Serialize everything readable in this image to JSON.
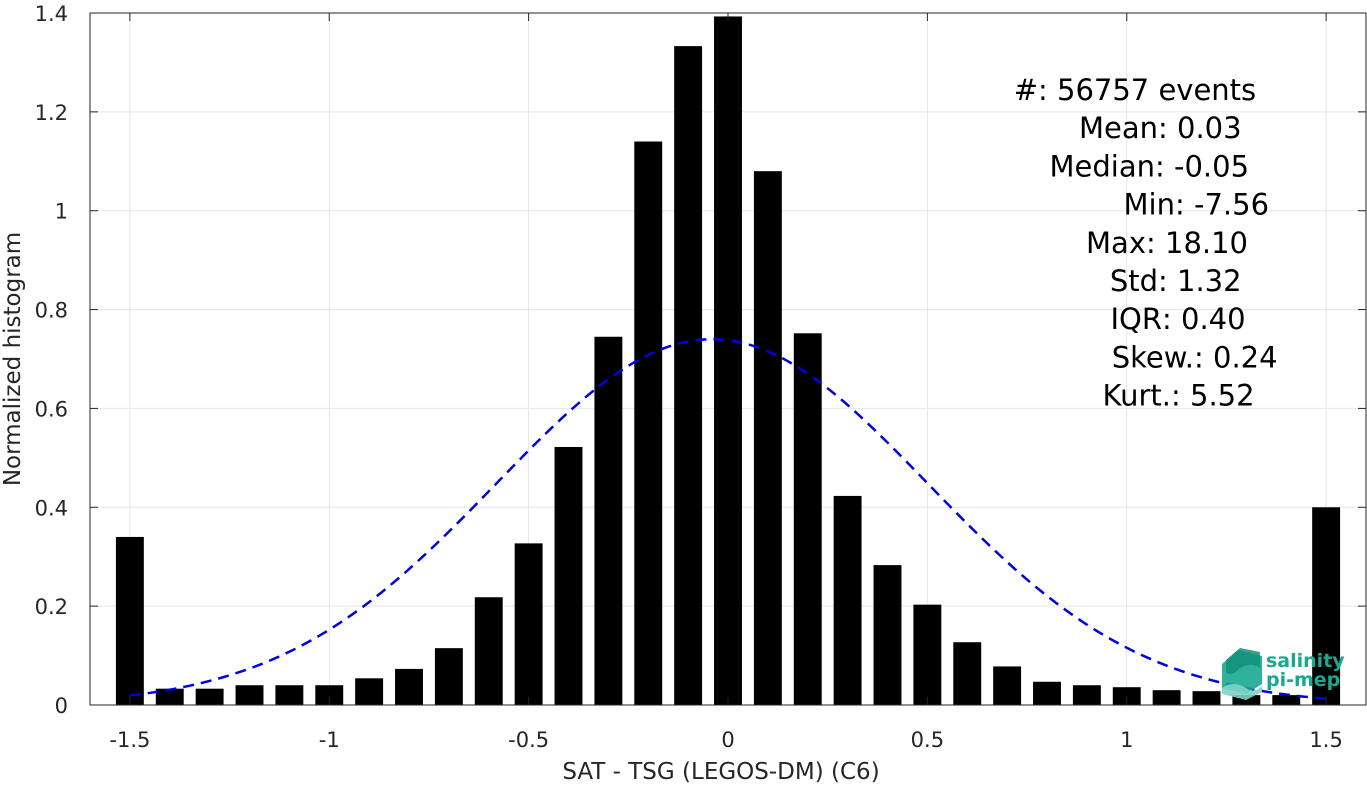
{
  "chart_data": {
    "type": "bar",
    "xlabel": "SAT - TSG (LEGOS-DM) (C6)",
    "ylabel": "Normalized histogram",
    "xlim": [
      -1.6,
      1.6
    ],
    "ylim": [
      0,
      1.4
    ],
    "grid": true,
    "x_ticks": [
      -1.5,
      -1,
      -0.5,
      0,
      0.5,
      1,
      1.5
    ],
    "x_tick_labels": [
      "-1.5",
      "-1",
      "-0.5",
      "0",
      "0.5",
      "1",
      "1.5"
    ],
    "y_ticks": [
      0,
      0.2,
      0.4,
      0.6,
      0.8,
      1,
      1.2,
      1.4
    ],
    "y_tick_labels": [
      "0",
      "0.2",
      "0.4",
      "0.6",
      "0.8",
      "1",
      "1.2",
      "1.4"
    ],
    "bin_width": 0.1,
    "bar_color": "#000000",
    "x": [
      -1.5,
      -1.4,
      -1.3,
      -1.2,
      -1.1,
      -1.0,
      -0.9,
      -0.8,
      -0.7,
      -0.6,
      -0.5,
      -0.4,
      -0.3,
      -0.2,
      -0.1,
      0.0,
      0.1,
      0.2,
      0.3,
      0.4,
      0.5,
      0.6,
      0.7,
      0.8,
      0.9,
      1.0,
      1.1,
      1.2,
      1.3,
      1.4,
      1.5
    ],
    "values": [
      0.34,
      0.033,
      0.033,
      0.04,
      0.04,
      0.04,
      0.054,
      0.073,
      0.115,
      0.218,
      0.327,
      0.522,
      0.745,
      1.14,
      1.333,
      1.393,
      1.08,
      0.752,
      0.423,
      0.283,
      0.203,
      0.127,
      0.078,
      0.047,
      0.04,
      0.036,
      0.03,
      0.028,
      0.02,
      0.02,
      0.4
    ],
    "fit_curve": {
      "type": "normal",
      "mean": -0.04,
      "std": 0.54,
      "peak": 0.74,
      "x_range": [
        -1.5,
        1.5
      ],
      "color": "#0000e0",
      "style": "dashed"
    },
    "annotations": [
      {
        "label": "#  ",
        "value": ": 56757 events"
      },
      {
        "label": "Mean ",
        "value": ": 0.03"
      },
      {
        "label": "Median ",
        "value": ": -0.05"
      },
      {
        "label": "Min ",
        "value": ": -7.56"
      },
      {
        "label": "Max ",
        "value": ": 18.10"
      },
      {
        "label": "Std ",
        "value": ": 1.32"
      },
      {
        "label": "IQR ",
        "value": ": 0.40"
      },
      {
        "label": "Skew. ",
        "value": ": 0.24"
      },
      {
        "label": "Kurt. ",
        "value": ": 5.52"
      }
    ]
  },
  "logo": {
    "line1": "salinity",
    "line2": "pi-mep",
    "color": "#1aa890"
  }
}
